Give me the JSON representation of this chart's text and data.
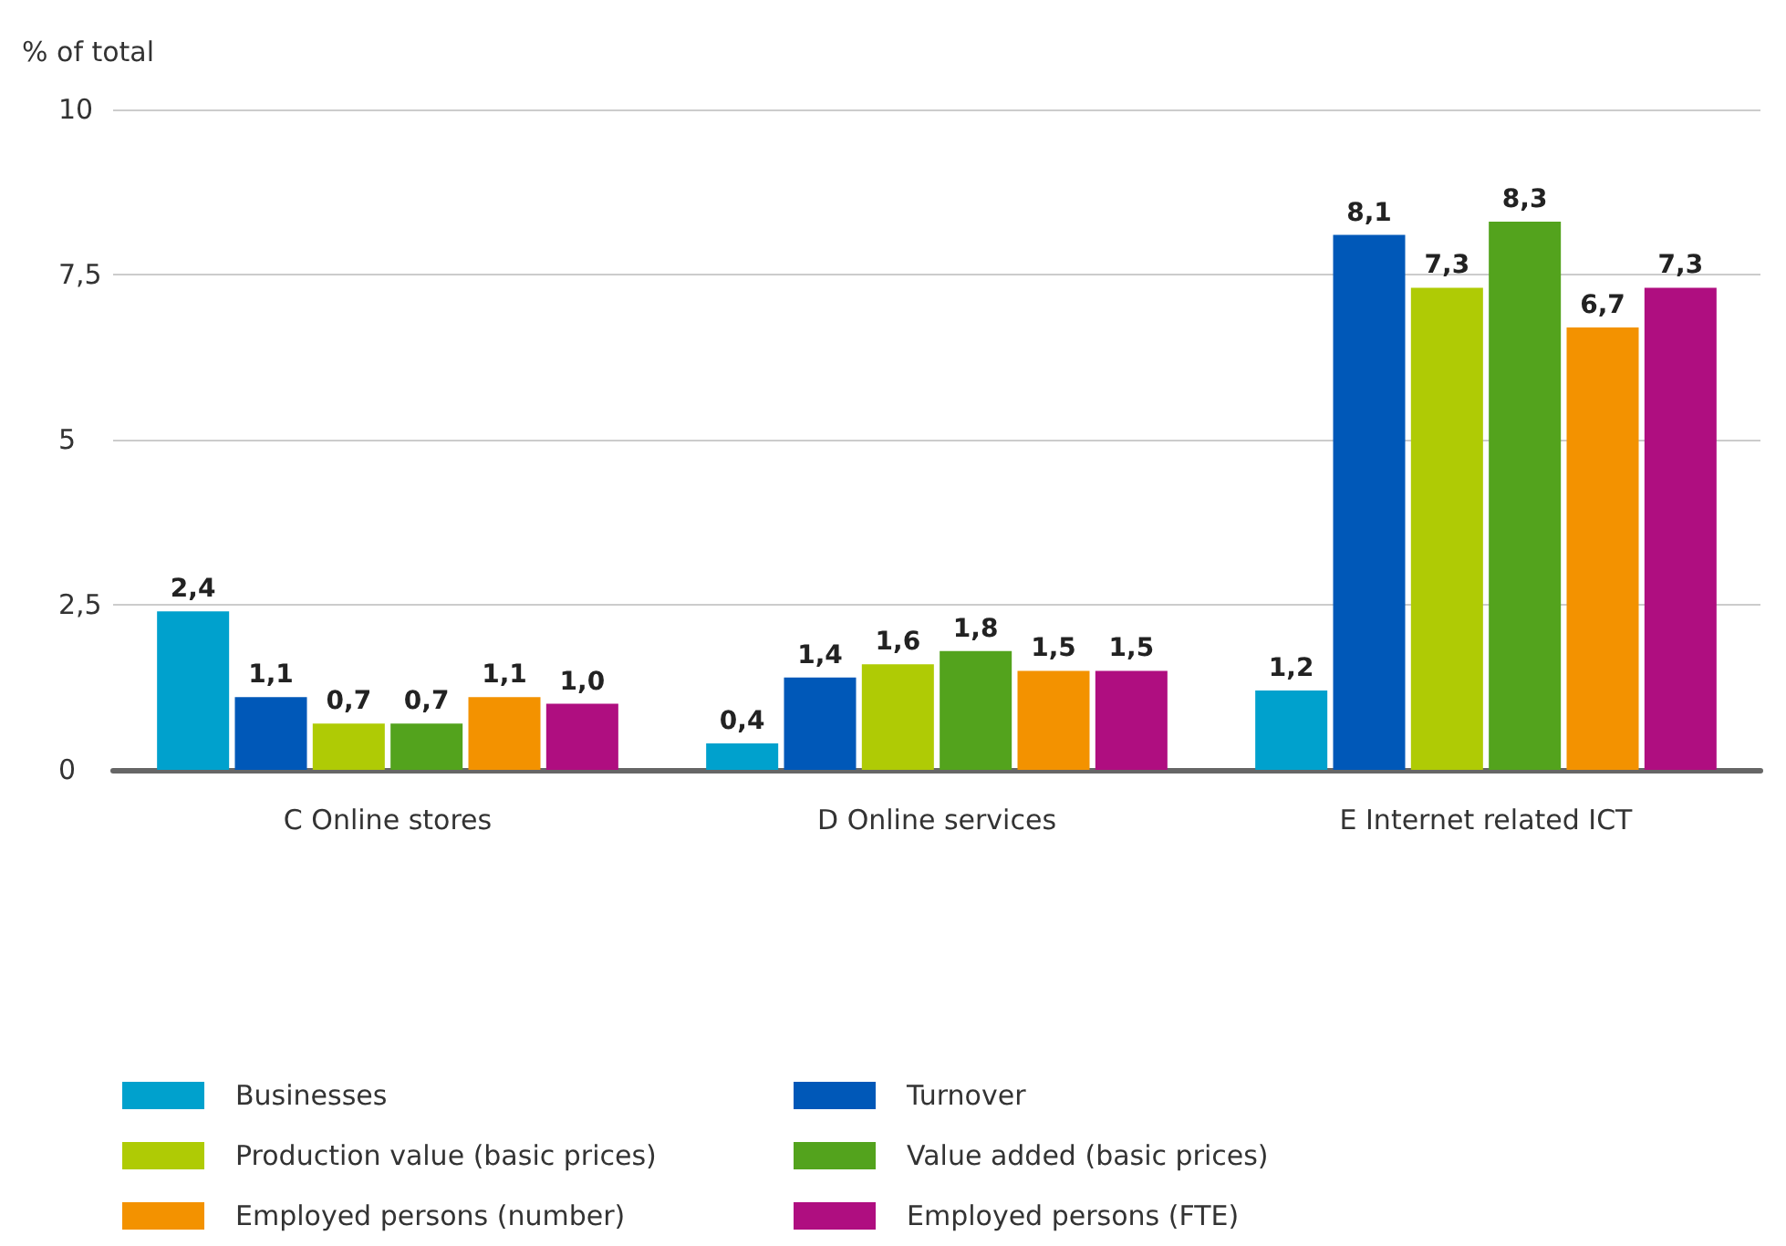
{
  "chart_data": {
    "type": "bar",
    "ylabel": "% of total",
    "categories": [
      "C Online stores",
      "D Online services",
      "E Internet related ICT"
    ],
    "series": [
      {
        "name": "Businesses",
        "color": "#00a1cd",
        "values": [
          2.4,
          0.4,
          1.2
        ],
        "value_labels": [
          "2,4",
          "0,4",
          "1,2"
        ]
      },
      {
        "name": "Turnover",
        "color": "#0058b8",
        "values": [
          1.1,
          1.4,
          8.1
        ],
        "value_labels": [
          "1,1",
          "1,4",
          "8,1"
        ]
      },
      {
        "name": "Production value (basic prices)",
        "color": "#afcb05",
        "values": [
          0.7,
          1.6,
          7.3
        ],
        "value_labels": [
          "0,7",
          "1,6",
          "7,3"
        ]
      },
      {
        "name": "Value added (basic prices)",
        "color": "#53a31d",
        "values": [
          0.7,
          1.8,
          8.3
        ],
        "value_labels": [
          "0,7",
          "1,8",
          "8,3"
        ]
      },
      {
        "name": "Employed persons (number)",
        "color": "#f39200",
        "values": [
          1.1,
          1.5,
          6.7
        ],
        "value_labels": [
          "1,1",
          "1,5",
          "6,7"
        ]
      },
      {
        "name": "Employed persons (FTE)",
        "color": "#af0e80",
        "values": [
          1.0,
          1.5,
          7.3
        ],
        "value_labels": [
          "1,0",
          "1,5",
          "7,3"
        ]
      }
    ],
    "ylim": [
      0,
      10
    ],
    "yticks": [
      0,
      {
        "value": 2.5,
        "label": "2,5"
      },
      5,
      {
        "value": 7.5,
        "label": "7,5"
      },
      10
    ],
    "grid": "y",
    "legend": "bottom"
  }
}
